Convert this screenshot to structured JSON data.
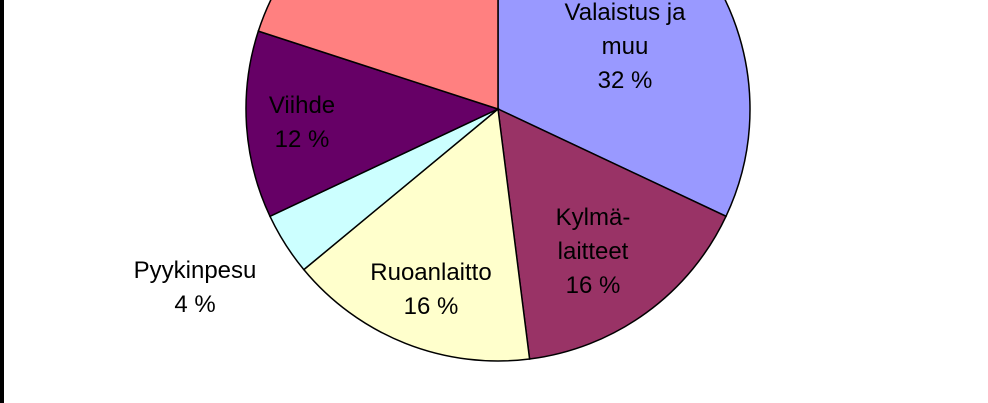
{
  "chart_data": {
    "type": "pie",
    "title": "",
    "slices": [
      {
        "name": "Valaistus ja muu",
        "value": 32,
        "label_lines": [
          "Valaistus ja",
          "muu",
          "32 %"
        ],
        "color": "#9999ff"
      },
      {
        "name": "Kylmälaitteet",
        "value": 16,
        "label_lines": [
          "Kylmä-",
          "laitteet",
          "16 %"
        ],
        "color": "#993366"
      },
      {
        "name": "Ruoanlaitto",
        "value": 16,
        "label_lines": [
          "Ruoanlaitto",
          "16 %"
        ],
        "color": "#ffffcc"
      },
      {
        "name": "Pyykinpesu",
        "value": 4,
        "label_lines": [
          "Pyykinpesu",
          "4 %"
        ],
        "color": "#ccffff"
      },
      {
        "name": "Viihde",
        "value": 12,
        "label_lines": [
          "Viihde",
          "12 %"
        ],
        "color": "#660066"
      },
      {
        "name": "",
        "value": 20,
        "label_lines": [],
        "color": "#ff8080"
      }
    ]
  }
}
